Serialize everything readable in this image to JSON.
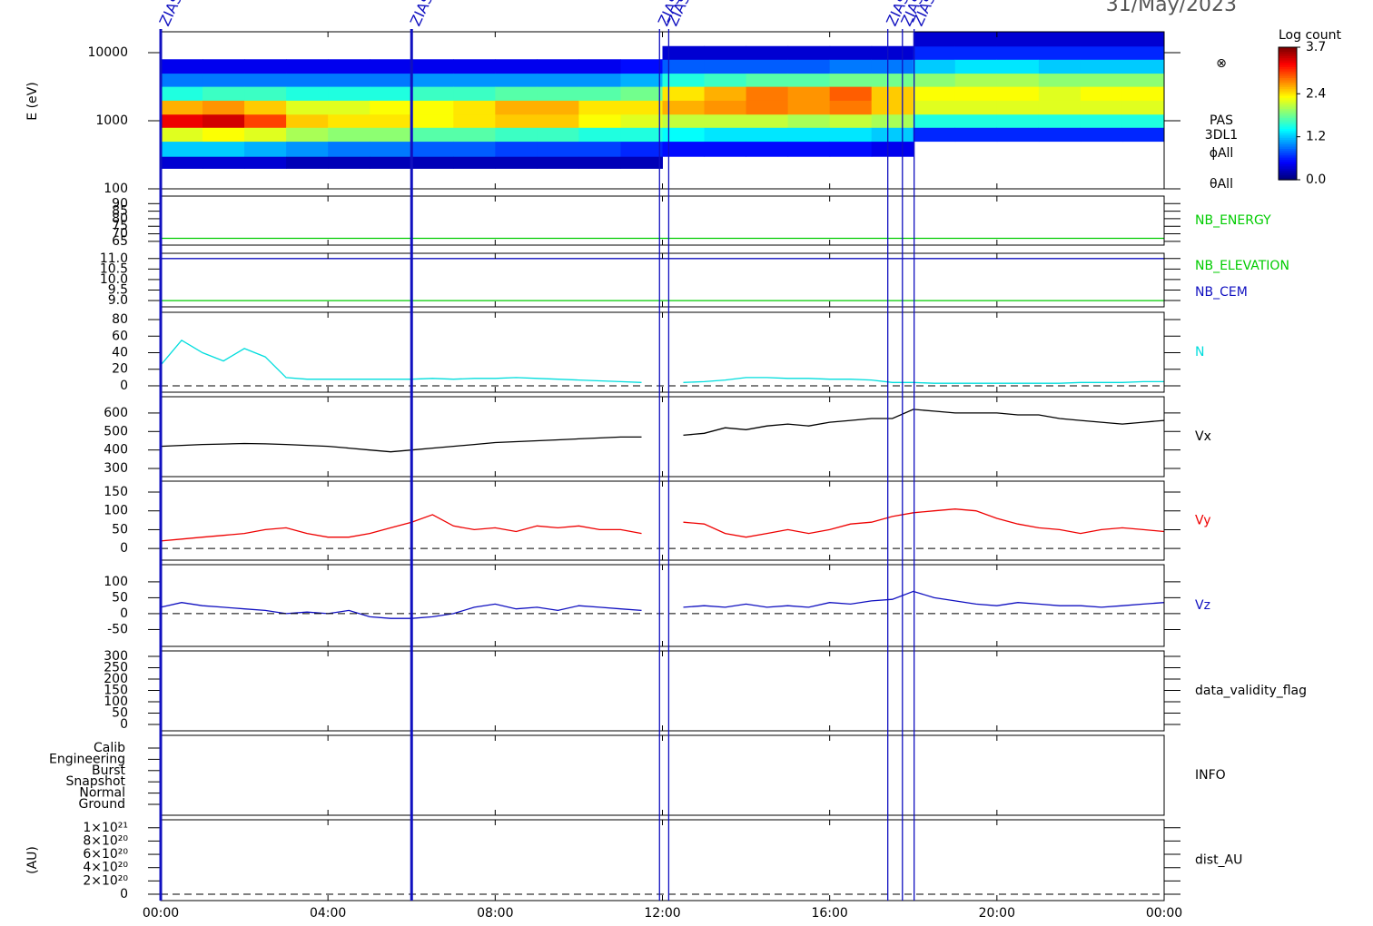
{
  "title": "31/May/2023",
  "xlim": [
    0,
    24
  ],
  "xticks": [
    {
      "value": 0,
      "label": "00:00"
    },
    {
      "value": 4,
      "label": "04:00"
    },
    {
      "value": 8,
      "label": "08:00"
    },
    {
      "value": 12,
      "label": "12:00"
    },
    {
      "value": 16,
      "label": "16:00"
    },
    {
      "value": 20,
      "label": "20:00"
    },
    {
      "value": 24,
      "label": "00:00"
    }
  ],
  "markers": {
    "label": "ZIAS",
    "color": "#1010c0",
    "x": [
      0,
      6.0,
      11.93,
      12.15,
      17.39,
      17.74,
      18.02
    ]
  },
  "chart_data": [
    {
      "type": "heatmap",
      "ylabel": "E (eV)",
      "log_y": true,
      "ylim": [
        100,
        20270
      ],
      "yticks": [
        100,
        1000,
        10000
      ],
      "side_labels": [
        "⊗",
        "PAS",
        "3DL1",
        "ϕAll",
        "θAll"
      ],
      "colorbar": {
        "label": "Log count",
        "lim": [
          0,
          3.7
        ],
        "ticks": [
          3.7,
          2.4,
          1.2,
          {
            "value": 0,
            "label": "0.0"
          }
        ]
      },
      "time_bins": [
        0,
        1,
        2,
        3,
        4,
        5,
        6,
        7,
        8,
        9,
        10,
        11,
        12,
        13,
        14,
        15,
        16,
        17,
        18,
        19,
        20,
        21,
        22,
        23,
        24
      ],
      "energy_bins": [
        200,
        300,
        500,
        800,
        1250,
        2000,
        3200,
        5000,
        8000,
        12500,
        20000
      ],
      "values": [
        [
          0.3,
          1.2,
          2.2,
          3.3,
          2.6,
          1.5,
          0.9,
          0.4,
          null,
          null
        ],
        [
          0.3,
          1.2,
          2.3,
          3.4,
          2.7,
          1.6,
          0.9,
          0.4,
          null,
          null
        ],
        [
          0.3,
          1.1,
          2.2,
          3.0,
          2.5,
          1.6,
          0.9,
          0.4,
          null,
          null
        ],
        [
          0.2,
          1.0,
          2.0,
          2.5,
          2.2,
          1.5,
          0.9,
          0.4,
          null,
          null
        ],
        [
          0.2,
          0.9,
          1.9,
          2.4,
          2.2,
          1.5,
          0.9,
          0.4,
          null,
          null
        ],
        [
          0.2,
          0.9,
          1.9,
          2.4,
          2.3,
          1.5,
          0.9,
          0.4,
          null,
          null
        ],
        [
          0.2,
          0.8,
          1.7,
          2.3,
          2.3,
          1.6,
          1.0,
          0.4,
          null,
          null
        ],
        [
          0.2,
          0.8,
          1.7,
          2.4,
          2.4,
          1.6,
          1.0,
          0.4,
          null,
          null
        ],
        [
          0.2,
          0.7,
          1.6,
          2.5,
          2.6,
          1.7,
          1.0,
          0.4,
          null,
          null
        ],
        [
          0.2,
          0.7,
          1.6,
          2.5,
          2.6,
          1.7,
          1.0,
          0.4,
          null,
          null
        ],
        [
          0.2,
          0.7,
          1.5,
          2.3,
          2.4,
          1.7,
          1.0,
          0.4,
          null,
          null
        ],
        [
          0.2,
          0.6,
          1.5,
          2.2,
          2.4,
          1.8,
          1.1,
          0.5,
          null,
          null
        ],
        [
          null,
          0.5,
          1.4,
          2.1,
          2.6,
          2.4,
          1.5,
          0.8,
          0.3,
          null
        ],
        [
          null,
          0.5,
          1.3,
          2.1,
          2.7,
          2.6,
          1.6,
          0.8,
          0.3,
          null
        ],
        [
          null,
          0.5,
          1.3,
          2.1,
          2.8,
          2.8,
          1.7,
          0.8,
          0.3,
          null
        ],
        [
          null,
          0.5,
          1.3,
          2.0,
          2.7,
          2.7,
          1.7,
          0.8,
          0.3,
          null
        ],
        [
          null,
          0.5,
          1.3,
          2.1,
          2.8,
          2.9,
          1.8,
          0.9,
          0.3,
          null
        ],
        [
          null,
          0.4,
          1.2,
          2.0,
          2.5,
          2.5,
          1.8,
          0.9,
          0.3,
          null
        ],
        [
          null,
          null,
          0.6,
          1.5,
          2.2,
          2.3,
          1.9,
          1.2,
          0.6,
          0.3
        ],
        [
          null,
          null,
          0.6,
          1.5,
          2.2,
          2.3,
          2.0,
          1.3,
          0.6,
          0.3
        ],
        [
          null,
          null,
          0.6,
          1.5,
          2.2,
          2.3,
          2.0,
          1.3,
          0.6,
          0.3
        ],
        [
          null,
          null,
          0.6,
          1.5,
          2.2,
          2.2,
          1.9,
          1.2,
          0.6,
          0.3
        ],
        [
          null,
          null,
          0.6,
          1.5,
          2.2,
          2.3,
          1.9,
          1.2,
          0.6,
          0.3
        ],
        [
          null,
          null,
          0.6,
          1.5,
          2.2,
          2.3,
          1.9,
          1.2,
          0.6,
          0.3
        ]
      ]
    },
    {
      "type": "line",
      "label": "NB_ENERGY",
      "label_color": "#00cc00",
      "ylim": [
        62.5,
        95
      ],
      "yticks": [
        65,
        70,
        75,
        80,
        85,
        90
      ],
      "x": [
        0,
        24
      ],
      "series": [
        {
          "color": "#00cc00",
          "values": [
            67,
            67
          ]
        }
      ]
    },
    {
      "type": "line",
      "label": "NB_ELEVATION",
      "label_color": "#00cc00",
      "label2": "NB_CEM",
      "label2_color": "#1010c0",
      "ylim": [
        8.7,
        11.25
      ],
      "yticks": [
        {
          "value": 9,
          "label": "9.0"
        },
        {
          "value": 9.5,
          "label": "9.5"
        },
        {
          "value": 10,
          "label": "10.0"
        },
        {
          "value": 10.5,
          "label": "10.5"
        },
        {
          "value": 11,
          "label": "11.0"
        }
      ],
      "x": [
        0,
        24
      ],
      "series": [
        {
          "color": "#00cc00",
          "values": [
            9,
            9
          ]
        },
        {
          "color": "#1010c0",
          "values": [
            11,
            11
          ]
        }
      ]
    },
    {
      "type": "line",
      "label": "N",
      "label_color": "#00dddd",
      "ylim": [
        -7.7,
        88.8
      ],
      "yticks": [
        0,
        20,
        40,
        60,
        80
      ],
      "zero_line": true,
      "x": [
        0,
        0.5,
        1,
        1.5,
        2,
        2.5,
        3,
        3.5,
        4,
        4.5,
        5,
        5.5,
        6,
        6.5,
        7,
        7.5,
        8,
        8.5,
        9,
        9.5,
        10,
        10.5,
        11,
        11.5,
        12,
        12.5,
        13,
        13.5,
        14,
        14.5,
        15,
        15.5,
        16,
        16.5,
        17,
        17.5,
        18,
        18.5,
        19,
        19.5,
        20,
        20.5,
        21,
        21.5,
        22,
        22.5,
        23,
        23.5,
        24
      ],
      "series": [
        {
          "color": "#00dddd",
          "values": [
            25,
            55,
            40,
            30,
            45,
            35,
            10,
            8,
            8,
            8,
            8,
            8,
            8,
            9,
            8,
            9,
            9,
            10,
            9,
            8,
            7,
            6,
            5,
            4,
            null,
            4,
            5,
            7,
            10,
            10,
            9,
            9,
            8,
            8,
            7,
            4,
            4,
            3,
            3,
            3,
            3,
            3,
            3,
            3,
            4,
            4,
            4,
            5,
            5
          ]
        }
      ]
    },
    {
      "type": "line",
      "label": "Vx",
      "label_color": "#000000",
      "ylim": [
        256,
        688
      ],
      "yticks": [
        300,
        400,
        500,
        600
      ],
      "x": [
        0,
        0.5,
        1,
        1.5,
        2,
        2.5,
        3,
        3.5,
        4,
        4.5,
        5,
        5.5,
        6,
        6.5,
        7,
        7.5,
        8,
        8.5,
        9,
        9.5,
        10,
        10.5,
        11,
        11.5,
        12,
        12.5,
        13,
        13.5,
        14,
        14.5,
        15,
        15.5,
        16,
        16.5,
        17,
        17.5,
        18,
        18.5,
        19,
        19.5,
        20,
        20.5,
        21,
        21.5,
        22,
        22.5,
        23,
        23.5,
        24
      ],
      "series": [
        {
          "color": "#000000",
          "values": [
            420,
            425,
            430,
            432,
            435,
            433,
            430,
            425,
            420,
            410,
            400,
            390,
            400,
            410,
            420,
            430,
            440,
            445,
            450,
            455,
            460,
            465,
            470,
            470,
            null,
            480,
            490,
            520,
            510,
            530,
            540,
            530,
            550,
            560,
            570,
            570,
            620,
            610,
            600,
            600,
            600,
            590,
            590,
            570,
            560,
            550,
            540,
            550,
            560
          ]
        }
      ]
    },
    {
      "type": "line",
      "label": "Vy",
      "label_color": "#ee0000",
      "ylim": [
        -31,
        179
      ],
      "yticks": [
        0,
        50,
        100,
        150
      ],
      "zero_line": true,
      "x": [
        0,
        0.5,
        1,
        1.5,
        2,
        2.5,
        3,
        3.5,
        4,
        4.5,
        5,
        5.5,
        6,
        6.5,
        7,
        7.5,
        8,
        8.5,
        9,
        9.5,
        10,
        10.5,
        11,
        11.5,
        12,
        12.5,
        13,
        13.5,
        14,
        14.5,
        15,
        15.5,
        16,
        16.5,
        17,
        17.5,
        18,
        18.5,
        19,
        19.5,
        20,
        20.5,
        21,
        21.5,
        22,
        22.5,
        23,
        23.5,
        24
      ],
      "series": [
        {
          "color": "#ee0000",
          "values": [
            20,
            25,
            30,
            35,
            40,
            50,
            55,
            40,
            30,
            30,
            40,
            55,
            70,
            90,
            60,
            50,
            55,
            45,
            60,
            55,
            60,
            50,
            50,
            40,
            null,
            70,
            65,
            40,
            30,
            40,
            50,
            40,
            50,
            65,
            70,
            85,
            95,
            100,
            105,
            100,
            80,
            65,
            55,
            50,
            40,
            50,
            55,
            50,
            45
          ]
        }
      ]
    },
    {
      "type": "line",
      "label": "Vz",
      "label_color": "#1010c0",
      "ylim": [
        -103,
        154
      ],
      "yticks": [
        -50,
        0,
        50,
        100
      ],
      "zero_line": true,
      "x": [
        0,
        0.5,
        1,
        1.5,
        2,
        2.5,
        3,
        3.5,
        4,
        4.5,
        5,
        5.5,
        6,
        6.5,
        7,
        7.5,
        8,
        8.5,
        9,
        9.5,
        10,
        10.5,
        11,
        11.5,
        12,
        12.5,
        13,
        13.5,
        14,
        14.5,
        15,
        15.5,
        16,
        16.5,
        17,
        17.5,
        18,
        18.5,
        19,
        19.5,
        20,
        20.5,
        21,
        21.5,
        22,
        22.5,
        23,
        23.5,
        24
      ],
      "series": [
        {
          "color": "#1010c0",
          "values": [
            20,
            35,
            25,
            20,
            15,
            10,
            0,
            5,
            0,
            10,
            -10,
            -15,
            -15,
            -10,
            0,
            20,
            30,
            15,
            20,
            10,
            25,
            20,
            15,
            10,
            null,
            20,
            25,
            20,
            30,
            20,
            25,
            20,
            35,
            30,
            40,
            45,
            70,
            50,
            40,
            30,
            25,
            35,
            30,
            25,
            25,
            20,
            25,
            30,
            35
          ]
        }
      ]
    },
    {
      "type": "line",
      "label": "data_validity_flag",
      "label_color": "#000000",
      "ylim": [
        -28,
        324
      ],
      "yticks": [
        0,
        50,
        100,
        150,
        200,
        250,
        300
      ]
    },
    {
      "type": "category",
      "label": "INFO",
      "label_color": "#000000",
      "categories": [
        "Calib",
        "Engineering",
        "Burst",
        "Snapshot",
        "Normal",
        "Ground"
      ]
    },
    {
      "type": "line",
      "label": "dist_AU",
      "label_color": "#000000",
      "ylabel": "(AU)",
      "ylim": [
        -9.6e+19,
        1.12e+21
      ],
      "zero_line": true,
      "yticks": [
        0,
        {
          "value": 2e+20,
          "label": "2×10²⁰"
        },
        {
          "value": 4e+20,
          "label": "4×10²⁰"
        },
        {
          "value": 6e+20,
          "label": "6×10²⁰"
        },
        {
          "value": 8e+20,
          "label": "8×10²⁰"
        },
        {
          "value": 1e+21,
          "label": "1×10²¹"
        }
      ]
    }
  ]
}
